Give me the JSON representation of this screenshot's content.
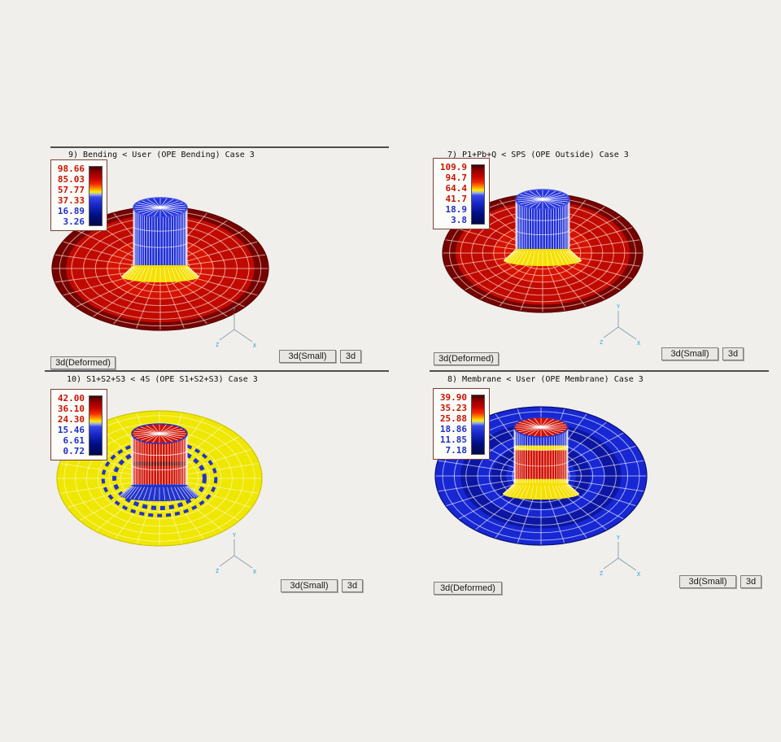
{
  "window": {
    "background_color": "#f0efeb"
  },
  "triad": {
    "x_label": "X",
    "y_label": "Y",
    "z_label": "Z",
    "label_color": "#2e9fd4",
    "line_color": "#8fa0b4"
  },
  "legend_bar_gradient": [
    [
      "0%",
      "#400000"
    ],
    [
      "8%",
      "#8a0000"
    ],
    [
      "20%",
      "#c80000"
    ],
    [
      "30%",
      "#f03000"
    ],
    [
      "37%",
      "#ff9000"
    ],
    [
      "43%",
      "#ffee00"
    ],
    [
      "47%",
      "#9fb0e0"
    ],
    [
      "52%",
      "#3648e6"
    ],
    [
      "65%",
      "#1828c8"
    ],
    [
      "82%",
      "#000e86"
    ],
    [
      "100%",
      "#000848"
    ]
  ],
  "quadrants": [
    {
      "id": "bending",
      "title": "9) Bending < User (OPE Bending) Case 3",
      "legend": {
        "values": [
          "98.66",
          "85.03",
          "57.77",
          "37.33",
          "16.89",
          "3.26"
        ],
        "value_colors": [
          "#c81400",
          "#c81400",
          "#c81400",
          "#c81400",
          "#2030c8",
          "#2030c8"
        ],
        "border_color": "#7a4038"
      },
      "buttons": {
        "small": "3d(Small)",
        "plain": "3d",
        "deformed": "3d(Deformed)"
      },
      "plot": {
        "disc_rings": [
          [
            1,
            "#740300"
          ],
          [
            0.87,
            "#c00a00"
          ],
          [
            0.5,
            "#d51300"
          ],
          [
            0.22,
            "#b00800"
          ]
        ],
        "grid_color": "rgba(255,224,214,0.65)",
        "disc_edge": "#5a0200",
        "dash_rings": [],
        "cyl_bands": [
          [
            0,
            1,
            "#1f2ed6"
          ]
        ],
        "cyl_mesh": "rgba(255,255,255,0.8)",
        "cap_color": "#2634de",
        "cap_spokes": "rgba(255,255,255,0.9)",
        "cap_rim": "#4150e8",
        "skirt_color": "#f6e000"
      }
    },
    {
      "id": "p1-pb-q",
      "title": "7) P1+Pb+Q < SPS (OPE Outside) Case 3",
      "legend": {
        "values": [
          "109.9",
          "94.7",
          "64.4",
          "41.7",
          "18.9",
          "3.8"
        ],
        "value_colors": [
          "#c81400",
          "#c81400",
          "#c81400",
          "#c81400",
          "#2030c8",
          "#2030c8"
        ],
        "border_color": "#7a4038"
      },
      "buttons": {
        "small": "3d(Small)",
        "plain": "3d",
        "deformed": "3d(Deformed)"
      },
      "plot": {
        "disc_rings": [
          [
            1,
            "#740300"
          ],
          [
            0.87,
            "#c00a00"
          ],
          [
            0.5,
            "#d51300"
          ],
          [
            0.22,
            "#b00800"
          ]
        ],
        "grid_color": "rgba(255,224,214,0.65)",
        "disc_edge": "#5a0200",
        "dash_rings": [],
        "cyl_bands": [
          [
            0,
            1,
            "#1f2ed6"
          ]
        ],
        "cyl_mesh": "rgba(255,255,255,0.8)",
        "cap_color": "#2634de",
        "cap_spokes": "rgba(255,255,255,0.9)",
        "cap_rim": "#4150e8",
        "skirt_color": "#f6e000"
      }
    },
    {
      "id": "s1-s2-s3",
      "title": "10) S1+S2+S3 < 4S (OPE S1+S2+S3) Case 3",
      "legend": {
        "values": [
          "42.00",
          "36.10",
          "24.30",
          "15.46",
          "6.61",
          "0.72"
        ],
        "value_colors": [
          "#c81400",
          "#c81400",
          "#c81400",
          "#2030c8",
          "#2030c8",
          "#2030c8"
        ],
        "border_color": "#7a4038"
      },
      "buttons": {
        "small": "3d(Small)",
        "plain": "3d"
      },
      "plot": {
        "disc_rings": [
          [
            1,
            "#efe700"
          ]
        ],
        "grid_color": "rgba(255,255,255,0.5)",
        "disc_edge": "#cfc400",
        "dash_rings": [
          [
            0.55,
            "#2233cc",
            4
          ],
          [
            0.44,
            "#2233cc",
            5
          ]
        ],
        "cyl_bands": [
          [
            0,
            0.1,
            "#2233cc"
          ],
          [
            0.1,
            0.5,
            "#d01000"
          ],
          [
            0.5,
            0.57,
            "#70100a"
          ],
          [
            0.57,
            0.9,
            "#d01000"
          ],
          [
            0.9,
            1,
            "#2233cc"
          ]
        ],
        "cyl_mesh": "rgba(255,255,255,0.85)",
        "cap_color": "#d01000",
        "cap_spokes": "rgba(255,255,255,0.9)",
        "cap_rim": "#2233cc",
        "skirt_color": "#2233cc"
      }
    },
    {
      "id": "membrane",
      "title": "8) Membrane < User (OPE Membrane) Case 3",
      "legend": {
        "values": [
          "39.90",
          "35.23",
          "25.88",
          "18.86",
          "11.85",
          "7.18"
        ],
        "value_colors": [
          "#c81400",
          "#c81400",
          "#c81400",
          "#2030c8",
          "#2030c8",
          "#2030c8"
        ],
        "border_color": "#7a4038"
      },
      "buttons": {
        "small": "3d(Small)",
        "plain": "3d",
        "deformed": "3d(Deformed)"
      },
      "plot": {
        "disc_rings": [
          [
            1,
            "#1727d3"
          ],
          [
            0.76,
            "#0c16a2"
          ],
          [
            0.6,
            "#1727d3"
          ],
          [
            0.47,
            "#0c16a2"
          ],
          [
            0.33,
            "#1727d3"
          ]
        ],
        "grid_color": "rgba(255,255,255,0.6)",
        "disc_edge": "#081070",
        "dash_rings": [],
        "cyl_bands": [
          [
            0,
            0.3,
            "#2030d8"
          ],
          [
            0.3,
            0.38,
            "#f6e000"
          ],
          [
            0.38,
            0.85,
            "#d01000"
          ],
          [
            0.85,
            1,
            "#f6e000"
          ]
        ],
        "cyl_mesh": "rgba(255,255,255,0.75)",
        "cap_color": "#d01000",
        "cap_spokes": "rgba(255,255,255,0.9)",
        "cap_rim": "#2233cc",
        "skirt_color": "#f6e000"
      }
    }
  ]
}
